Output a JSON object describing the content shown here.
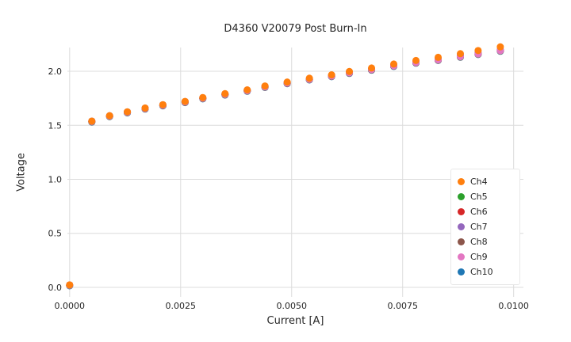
{
  "figure": {
    "background": "#ffffff",
    "grid_color": "#dcdcdc",
    "text_color": "#262626"
  },
  "chart_data": {
    "type": "scatter",
    "title": "D4360 V20079 Post Burn-In",
    "xlabel": "Current [A]",
    "ylabel": "Voltage",
    "xlim": [
      -5e-05,
      0.01022
    ],
    "ylim": [
      -0.088,
      2.22
    ],
    "grid": true,
    "legend_position": "lower right",
    "marker_radius": 4.5,
    "xticks": {
      "values": [
        0,
        0.0025,
        0.005,
        0.0075,
        0.01
      ],
      "labels": [
        "0.0000",
        "0.0025",
        "0.0050",
        "0.0075",
        "0.0100"
      ]
    },
    "yticks": {
      "values": [
        0,
        0.5,
        1,
        1.5,
        2
      ],
      "labels": [
        "0.0",
        "0.5",
        "1.0",
        "1.5",
        "2.0"
      ]
    },
    "x": [
      0.0,
      0.0005,
      0.0009,
      0.0013,
      0.0017,
      0.0021,
      0.0026,
      0.003,
      0.0035,
      0.004,
      0.0044,
      0.0049,
      0.0054,
      0.0059,
      0.0063,
      0.0068,
      0.0073,
      0.0078,
      0.0083,
      0.0088,
      0.0092,
      0.0097
    ],
    "series": [
      {
        "name": "Ch4",
        "color": "#ff7f0e",
        "values": [
          0.023,
          1.539,
          1.589,
          1.625,
          1.66,
          1.691,
          1.721,
          1.757,
          1.793,
          1.828,
          1.864,
          1.9,
          1.936,
          1.967,
          1.998,
          2.03,
          2.067,
          2.1,
          2.129,
          2.163,
          2.192,
          2.226
        ]
      },
      {
        "name": "Ch5",
        "color": "#2ca02c",
        "values": [
          0.019,
          1.534,
          1.584,
          1.619,
          1.654,
          1.684,
          1.714,
          1.749,
          1.784,
          1.819,
          1.854,
          1.889,
          1.924,
          1.954,
          1.984,
          2.014,
          2.049,
          2.079,
          2.104,
          2.134,
          2.159,
          2.189
        ]
      },
      {
        "name": "Ch6",
        "color": "#d62728",
        "values": [
          0.022,
          1.537,
          1.587,
          1.622,
          1.657,
          1.687,
          1.717,
          1.752,
          1.787,
          1.822,
          1.857,
          1.892,
          1.927,
          1.957,
          1.987,
          2.017,
          2.052,
          2.082,
          2.107,
          2.137,
          2.162,
          2.192
        ]
      },
      {
        "name": "Ch7",
        "color": "#9467bd",
        "values": [
          0.022,
          1.539,
          1.589,
          1.624,
          1.659,
          1.69,
          1.72,
          1.755,
          1.79,
          1.826,
          1.861,
          1.896,
          1.931,
          1.962,
          1.992,
          2.023,
          2.059,
          2.089,
          2.115,
          2.146,
          2.171,
          2.202
        ]
      },
      {
        "name": "Ch8",
        "color": "#8c564b",
        "values": [
          0.017,
          1.532,
          1.582,
          1.617,
          1.652,
          1.682,
          1.712,
          1.747,
          1.782,
          1.817,
          1.852,
          1.887,
          1.922,
          1.952,
          1.982,
          2.012,
          2.047,
          2.077,
          2.102,
          2.132,
          2.157,
          2.187
        ]
      },
      {
        "name": "Ch9",
        "color": "#e377c2",
        "values": [
          0.02,
          1.535,
          1.585,
          1.62,
          1.655,
          1.685,
          1.715,
          1.75,
          1.785,
          1.82,
          1.855,
          1.89,
          1.925,
          1.955,
          1.985,
          2.015,
          2.05,
          2.08,
          2.105,
          2.135,
          2.16,
          2.19
        ]
      },
      {
        "name": "Ch10",
        "color": "#1f77b4",
        "values": [
          0.015,
          1.53,
          1.58,
          1.615,
          1.65,
          1.68,
          1.71,
          1.745,
          1.78,
          1.815,
          1.85,
          1.885,
          1.92,
          1.95,
          1.98,
          2.01,
          2.045,
          2.075,
          2.1,
          2.13,
          2.155,
          2.185
        ]
      }
    ],
    "draw_order": [
      "Ch10",
      "Ch8",
      "Ch5",
      "Ch6",
      "Ch7",
      "Ch9",
      "Ch4"
    ]
  }
}
